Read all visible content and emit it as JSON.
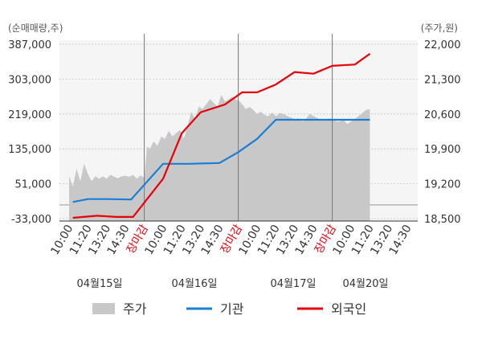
{
  "chart_data": {
    "type": "line",
    "left_axis_unit": "(순매매량,주)",
    "right_axis_unit": "(주가,원)",
    "left_ticks": [
      "387,000",
      "303,000",
      "219,000",
      "135,000",
      "51,000",
      "-33,000"
    ],
    "right_ticks": [
      "22,000",
      "21,300",
      "20,600",
      "19,900",
      "19,200",
      "18,500"
    ],
    "left_ylim": [
      -33000,
      387000
    ],
    "right_ylim": [
      18500,
      22000
    ],
    "x_tick_labels": [
      "10:00",
      "11:20",
      "13:20",
      "14:30",
      "장마감",
      "10:00",
      "11:20",
      "13:20",
      "14:30",
      "장마감",
      "10:00",
      "11:20",
      "13:20",
      "14:30",
      "장마감",
      "10:00",
      "11:20",
      "13:20",
      "14:30"
    ],
    "x_tick_highlight": [
      false,
      false,
      false,
      false,
      true,
      false,
      false,
      false,
      false,
      true,
      false,
      false,
      false,
      false,
      true,
      false,
      false,
      false,
      false
    ],
    "date_labels": [
      "04월15일",
      "04월16일",
      "04월17일",
      "04월20일"
    ],
    "day_boundaries": [
      4,
      9,
      14
    ],
    "grid": true,
    "legend": [
      {
        "name": "주가",
        "color": "#c8c8c8",
        "kind": "area"
      },
      {
        "name": "기관",
        "color": "#1a7fd4",
        "kind": "line"
      },
      {
        "name": "외국인",
        "color": "#e8000b",
        "kind": "line"
      }
    ],
    "series": [
      {
        "name": "주가",
        "axis": "right",
        "x": [
          0.0,
          0.2,
          0.4,
          0.6,
          0.8,
          1.0,
          1.2,
          1.4,
          1.6,
          1.8,
          2.0,
          2.2,
          2.4,
          2.6,
          2.8,
          3.0,
          3.2,
          3.4,
          3.6,
          3.8,
          4.0,
          4.15,
          4.3,
          4.5,
          4.7,
          4.9,
          5.1,
          5.3,
          5.5,
          5.7,
          5.9,
          6.1,
          6.3,
          6.5,
          6.7,
          6.9,
          7.1,
          7.3,
          7.5,
          7.7,
          7.9,
          8.1,
          8.3,
          8.5,
          8.7,
          8.9,
          9.0,
          9.2,
          9.4,
          9.6,
          9.8,
          10.0,
          10.2,
          10.4,
          10.6,
          10.8,
          11.0,
          11.2,
          11.4,
          11.6,
          11.8,
          12.0,
          12.2,
          12.4,
          12.6,
          12.8,
          13.0,
          13.2,
          13.4,
          13.6,
          13.8,
          14.0,
          14.2,
          14.4,
          14.6,
          14.8,
          15.0,
          15.2,
          15.4,
          15.6,
          15.8,
          16.0
        ],
        "values": [
          19350,
          19150,
          19500,
          19250,
          19600,
          19400,
          19250,
          19350,
          19300,
          19350,
          19300,
          19380,
          19340,
          19310,
          19350,
          19360,
          19340,
          19380,
          19300,
          19370,
          19320,
          19950,
          19900,
          20050,
          19960,
          20150,
          20100,
          20260,
          20150,
          20220,
          20280,
          20100,
          20350,
          20650,
          20500,
          20750,
          20700,
          20800,
          20900,
          20820,
          20750,
          20980,
          20850,
          20900,
          20950,
          20880,
          20880,
          20800,
          20700,
          20740,
          20680,
          20600,
          20650,
          20580,
          20550,
          20630,
          20550,
          20620,
          20600,
          20560,
          20530,
          20500,
          20510,
          20450,
          20500,
          20600,
          20560,
          20520,
          20480,
          20470,
          20510,
          20500,
          20450,
          20450,
          20480,
          20400,
          20450,
          20500,
          20560,
          20620,
          20680,
          20700
        ]
      },
      {
        "name": "기관",
        "axis": "left",
        "x": [
          0.2,
          1.0,
          2.0,
          3.3,
          5.0,
          6.4,
          8.0,
          9.0,
          10.0,
          11.0,
          12.0,
          13.5,
          16.0
        ],
        "values": [
          7000,
          14000,
          14000,
          13000,
          99000,
          99000,
          101000,
          127000,
          159000,
          205000,
          205000,
          205000,
          205000
        ]
      },
      {
        "name": "외국인",
        "axis": "left",
        "x": [
          0.2,
          1.5,
          2.5,
          3.4,
          5.0,
          6.0,
          7.0,
          8.3,
          9.2,
          10.0,
          11.0,
          12.0,
          13.0,
          14.0,
          15.2,
          16.0
        ],
        "values": [
          -31000,
          -26000,
          -29000,
          -29000,
          63000,
          173000,
          223000,
          242000,
          271000,
          271000,
          290000,
          320000,
          316000,
          335000,
          338000,
          364000
        ]
      }
    ]
  }
}
